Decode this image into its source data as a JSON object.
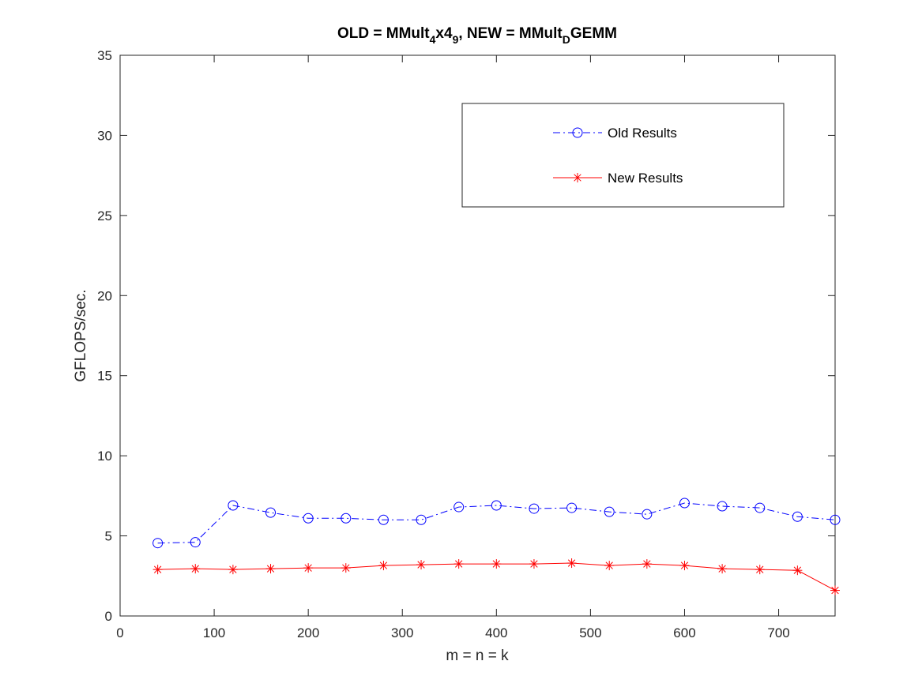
{
  "chart_data": {
    "type": "line",
    "title": {
      "prefix": "OLD = MMult",
      "sub1": "4",
      "mid1": "x4",
      "sub2": "9",
      "mid2": ", NEW = MMult",
      "sub3": "D",
      "suffix": "GEMM"
    },
    "xlabel": "m = n = k",
    "ylabel": "GFLOPS/sec.",
    "xlim": [
      0,
      760
    ],
    "ylim": [
      0,
      35
    ],
    "xticks": [
      "0",
      "100",
      "200",
      "300",
      "400",
      "500",
      "600",
      "700"
    ],
    "yticks": [
      "0",
      "5",
      "10",
      "15",
      "20",
      "25",
      "30",
      "35"
    ],
    "grid": false,
    "legend_position": "top-right",
    "x": [
      40,
      80,
      120,
      160,
      200,
      240,
      280,
      320,
      360,
      400,
      440,
      480,
      520,
      560,
      600,
      640,
      680,
      720,
      760
    ],
    "series": [
      {
        "name": "Old Results",
        "color": "#0000ff",
        "line_style": "dash-dot",
        "marker": "circle",
        "values": [
          4.55,
          4.6,
          6.9,
          6.45,
          6.1,
          6.1,
          6.0,
          6.0,
          6.8,
          6.9,
          6.7,
          6.75,
          6.5,
          6.35,
          7.05,
          6.85,
          6.75,
          6.2,
          6.0
        ]
      },
      {
        "name": "New Results",
        "color": "#ff0000",
        "line_style": "solid",
        "marker": "asterisk",
        "values": [
          2.9,
          2.95,
          2.9,
          2.95,
          3.0,
          3.0,
          3.15,
          3.2,
          3.25,
          3.25,
          3.25,
          3.3,
          3.15,
          3.25,
          3.15,
          2.95,
          2.9,
          2.85,
          1.6
        ]
      }
    ]
  }
}
